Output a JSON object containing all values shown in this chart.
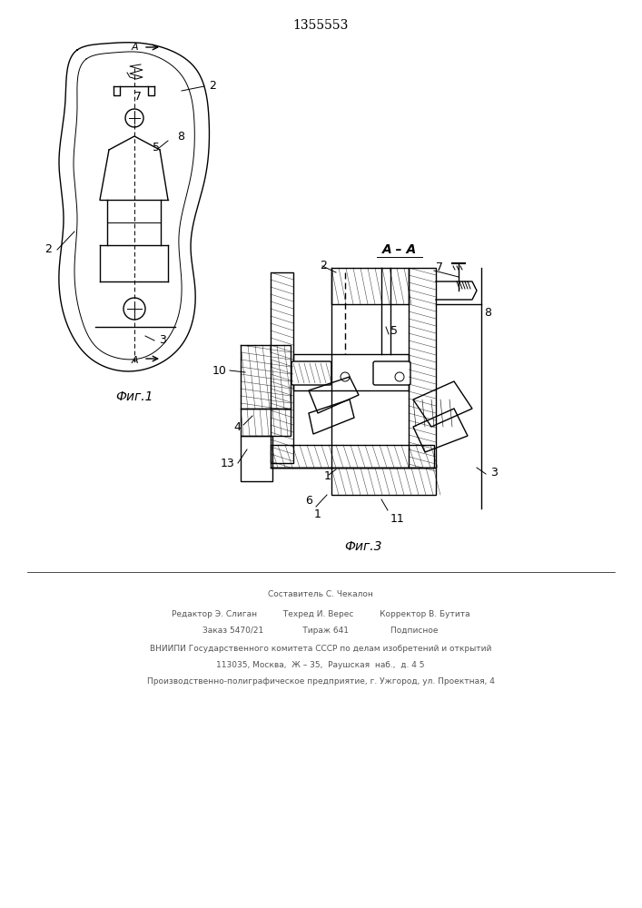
{
  "patent_number": "1355553",
  "fig1_label": "Фиг.1",
  "fig3_label": "Фиг.3",
  "section_label": "А – А",
  "bg_color": "#ffffff",
  "line_color": "#000000",
  "hatch_color": "#000000",
  "footer_lines": [
    "Составитель С. Чекалон",
    "Редактор Э. Слиган          Техред И. Верес          Корректор В. Бутита",
    "Заказ 5470/21               Тираж 641                Подписное",
    "ВНИИПИ Государственного комитета СССР по делам изобретений и открытий",
    "113035, Москва,  Ж – 35,  Раушская  наб.,  д. 4 5",
    "Производственно-полиграфическое предприятие, г. Ужгород, ул. Проектная, 4"
  ]
}
